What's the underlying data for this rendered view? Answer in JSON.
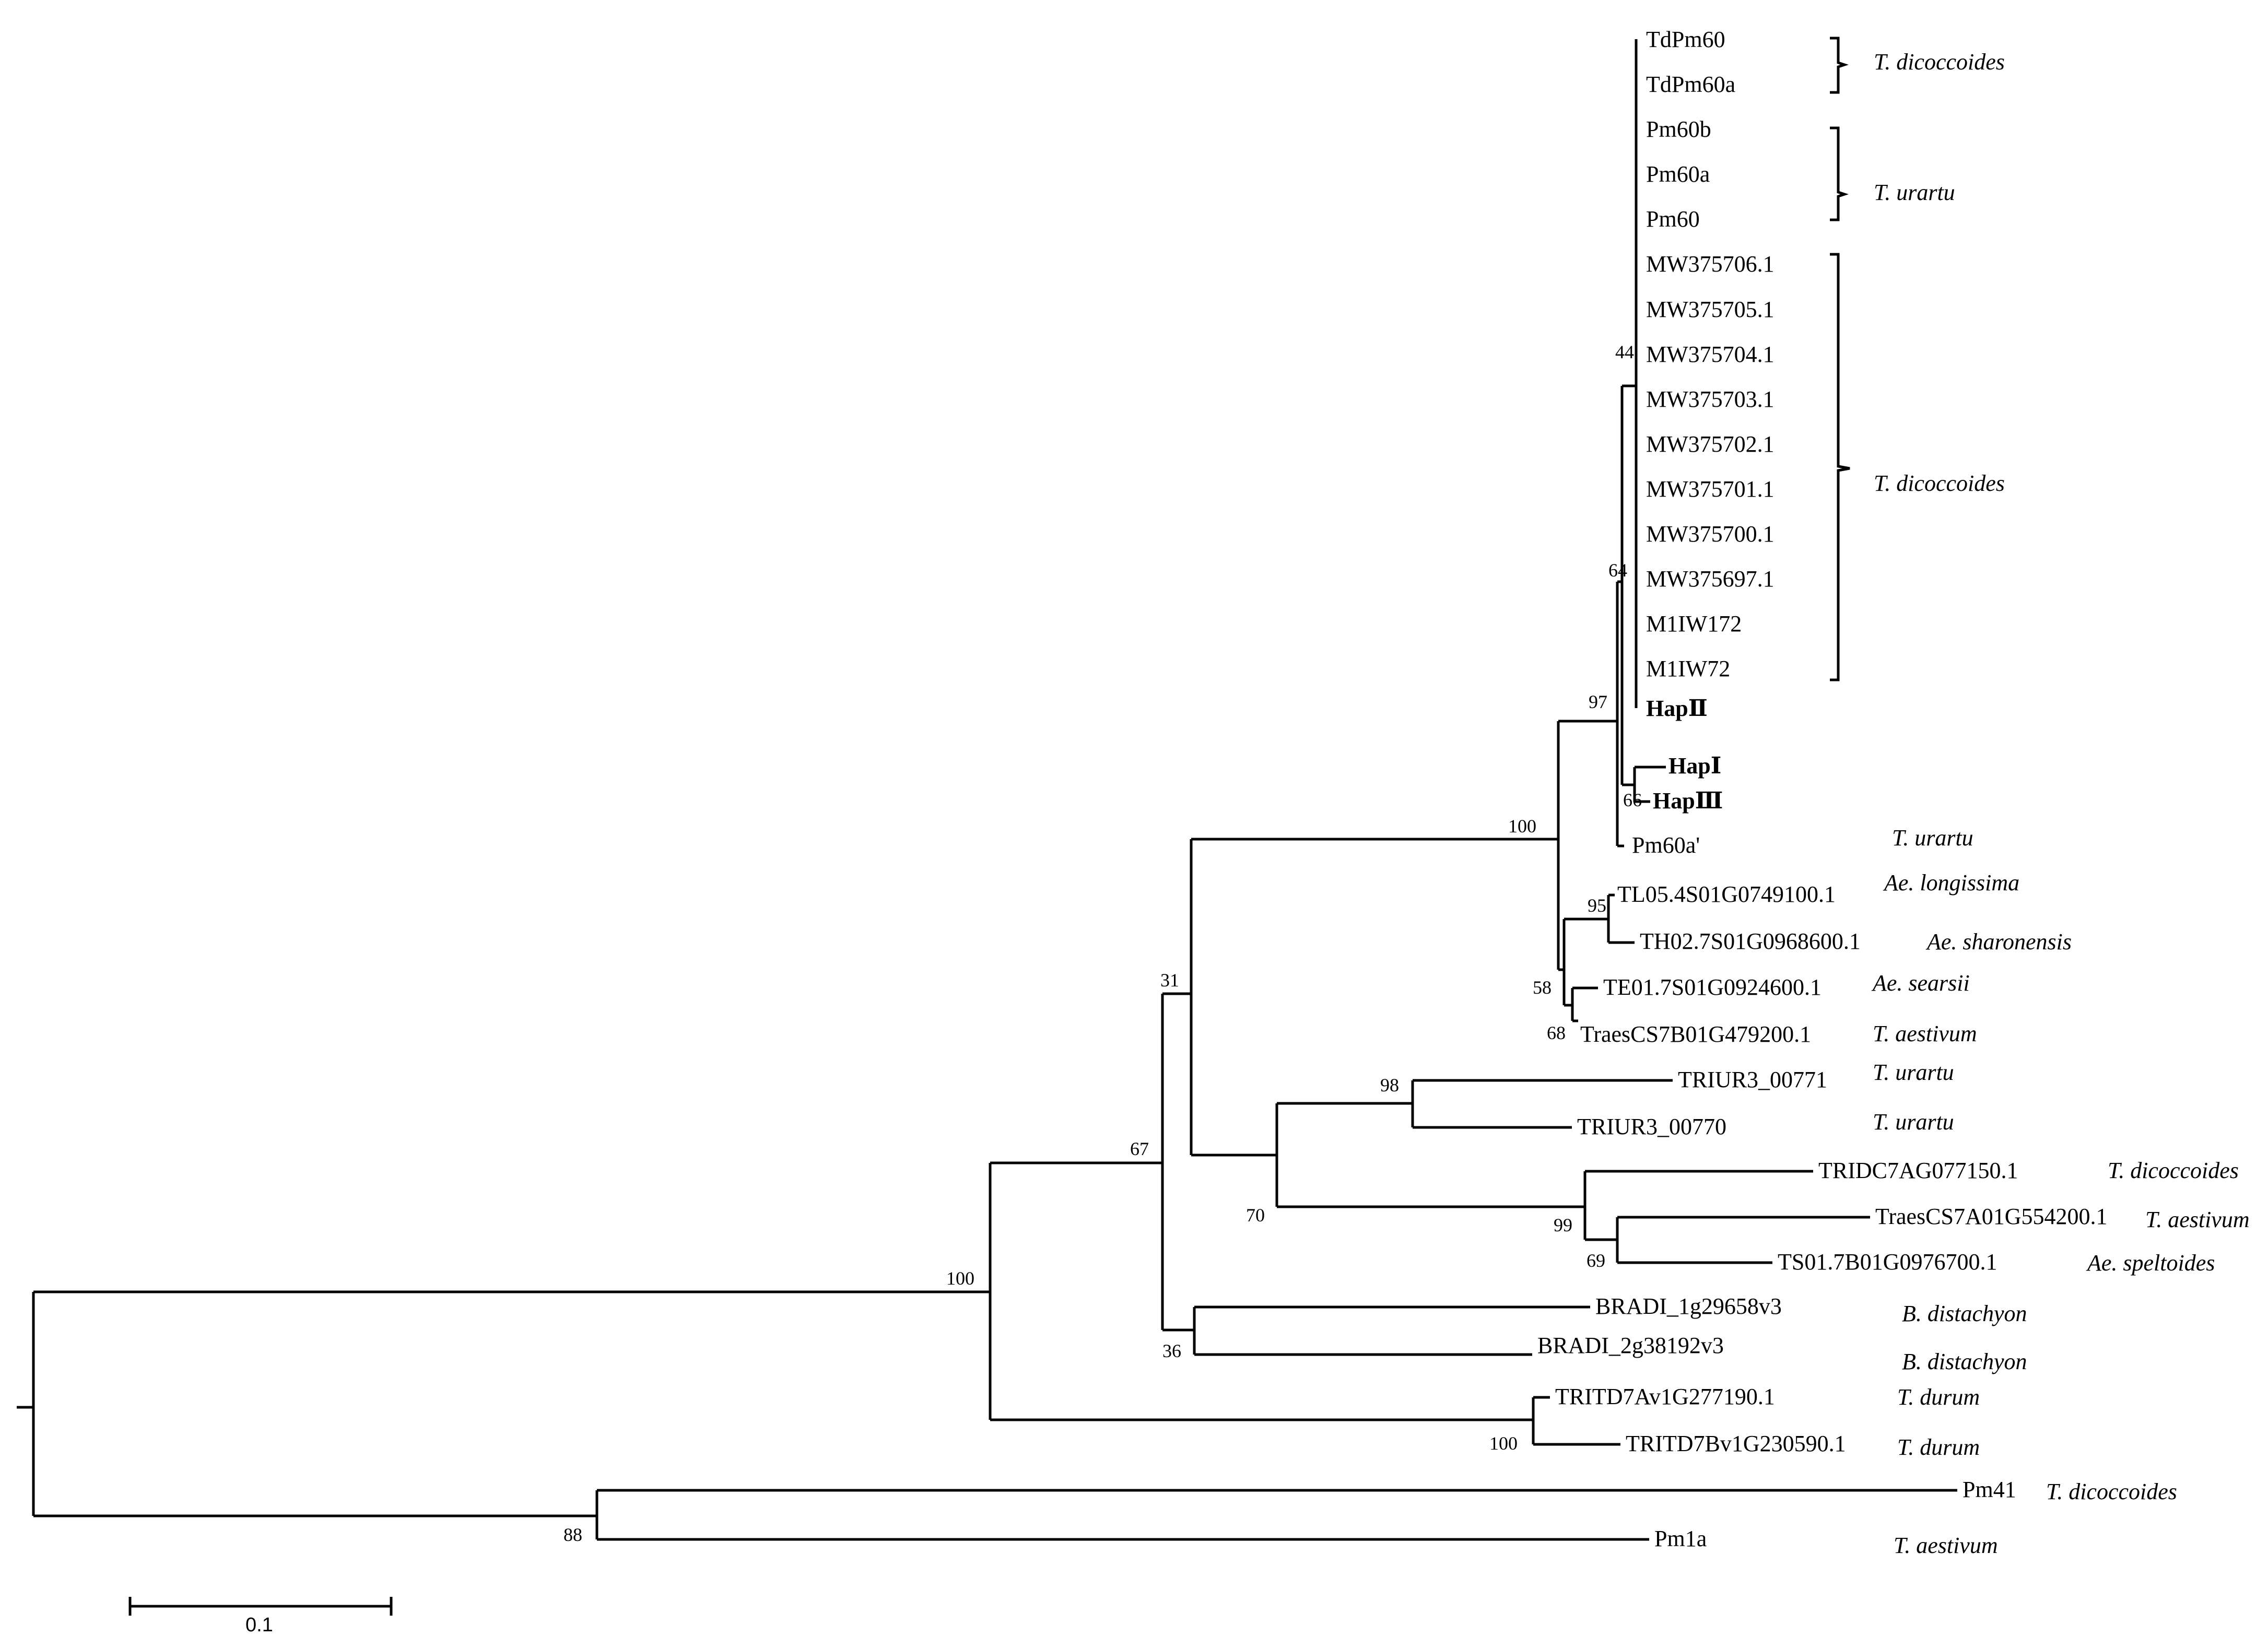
{
  "figure": {
    "type": "phylogenetic_tree",
    "scale_bar": {
      "label": "0.1",
      "value": 0.1
    }
  },
  "taxa": [
    "TdPm60",
    "TdPm60a",
    "Pm60b",
    "Pm60a",
    "Pm60",
    "MW375706.1",
    "MW375705.1",
    "MW375704.1",
    "MW375703.1",
    "MW375702.1",
    "MW375701.1",
    "MW375700.1",
    "MW375697.1",
    "M1IW172",
    "M1IW72",
    "HapⅡ",
    "HapⅠ",
    "HapⅢ",
    "Pm60a'",
    "TL05.4S01G0749100.1",
    "TH02.7S01G0968600.1",
    "TE01.7S01G0924600.1",
    "TraesCS7B01G479200.1",
    "TRIUR3_00771",
    "TRIUR3_00770",
    "TRIDC7AG077150.1",
    "TraesCS7A01G554200.1",
    "TS01.7B01G0976700.1",
    "BRADI_1g29658v3",
    "BRADI_2g38192v3",
    "TRITD7Av1G277190.1",
    "TRITD7Bv1G230590.1",
    "Pm41",
    "Pm1a"
  ],
  "species_labels": [
    "T. dicoccoides",
    "T. urartu",
    "T. dicoccoides",
    "T. urartu",
    "Ae. longissima",
    "Ae. sharonensis",
    "Ae. searsii",
    "T. aestivum",
    "T. urartu",
    "T. urartu",
    "T. dicoccoides",
    "T. aestivum",
    "Ae. speltoides",
    "B. distachyon",
    "B. distachyon",
    "T. durum",
    "T. durum",
    "T. dicoccoides",
    "T. aestivum"
  ],
  "bootstrap_values": [
    "44",
    "64",
    "97",
    "66",
    "100",
    "95",
    "58",
    "68",
    "31",
    "98",
    "67",
    "70",
    "99",
    "69",
    "100",
    "36",
    "100",
    "88"
  ]
}
